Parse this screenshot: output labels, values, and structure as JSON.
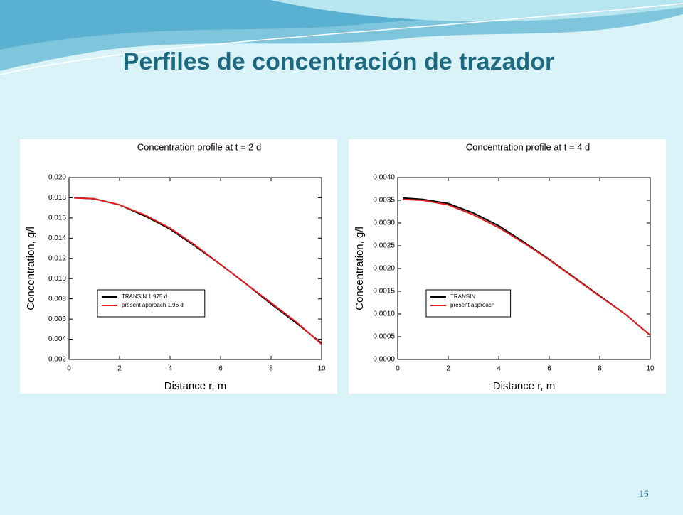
{
  "slide_title": "Perfiles de concentración de trazador",
  "page_number": "16",
  "chart_data": [
    {
      "type": "line",
      "title": "Concentration profile at t = 2 d",
      "x_label": "Distance r, m",
      "y_label": "Concentration, g/l",
      "x": [
        0.2,
        1,
        2,
        3,
        4,
        5,
        6,
        7,
        8,
        9,
        10
      ],
      "series": [
        {
          "name": "TRANSIN 1.975 d",
          "color": "#000000",
          "values": [
            0.018,
            0.0179,
            0.0173,
            0.0162,
            0.0149,
            0.0132,
            0.0114,
            0.0095,
            0.0075,
            0.0056,
            0.0036
          ]
        },
        {
          "name": "present approach 1.96 d",
          "color": "#e02020",
          "values": [
            0.018,
            0.0179,
            0.0173,
            0.0163,
            0.015,
            0.0133,
            0.0114,
            0.0095,
            0.0076,
            0.0057,
            0.0035
          ]
        }
      ],
      "xlim": [
        0,
        10
      ],
      "xticks": [
        0,
        2,
        4,
        6,
        8,
        10
      ],
      "ylim": [
        0.002,
        0.02
      ],
      "yticks": [
        0.002,
        0.004,
        0.006,
        0.008,
        {
          "value": 0.01,
          "label": "0.010"
        },
        0.012,
        0.014,
        0.016,
        0.018,
        {
          "value": 0.02,
          "label": "0.020"
        }
      ],
      "grid": false,
      "legend": "lower left"
    },
    {
      "type": "line",
      "title": "Concentration profile at t = 4 d",
      "x_label": "Distance r, m",
      "y_label": "Concentration, g/l",
      "x": [
        0.2,
        1,
        2,
        3,
        4,
        5,
        6,
        7,
        8,
        9,
        10
      ],
      "series": [
        {
          "name": "TRANSIN",
          "color": "#000000",
          "values": [
            0.00355,
            0.00352,
            0.00343,
            0.00322,
            0.00294,
            0.00258,
            0.0022,
            0.0018,
            0.0014,
            0.001,
            0.00053
          ]
        },
        {
          "name": "present approach",
          "color": "#e02020",
          "values": [
            0.00352,
            0.0035,
            0.0034,
            0.00318,
            0.0029,
            0.00256,
            0.00219,
            0.00179,
            0.00139,
            0.001,
            0.00053
          ]
        }
      ],
      "xlim": [
        0,
        10
      ],
      "xticks": [
        0,
        2,
        4,
        6,
        8,
        10
      ],
      "ylim": [
        0,
        0.004
      ],
      "yticks": [
        {
          "value": 0,
          "label": "0.0000"
        },
        0.0005,
        {
          "value": 0.001,
          "label": "0.0010"
        },
        0.0015,
        {
          "value": 0.002,
          "label": "0.0020"
        },
        0.0025,
        {
          "value": 0.003,
          "label": "0.0030"
        },
        0.0035,
        {
          "value": 0.004,
          "label": "0.0040"
        }
      ],
      "grid": false,
      "legend": "lower left"
    }
  ]
}
